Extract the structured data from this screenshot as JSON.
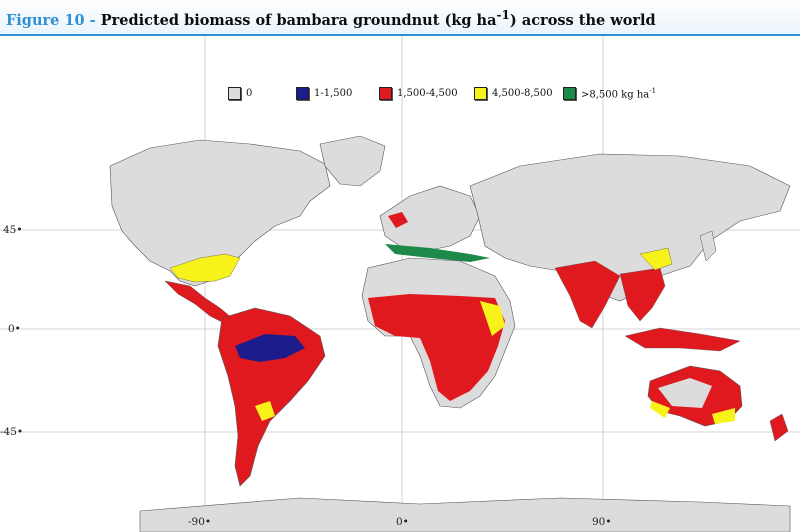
{
  "figure": {
    "number_label": "Figure 10 -",
    "title_main": "Predicted biomass of bambara groundnut (kg ha",
    "title_sup": "-1",
    "title_end": ") across the world"
  },
  "legend": [
    {
      "label": "0",
      "unit": "",
      "unit_sup": "",
      "color": "#dcdcdc"
    },
    {
      "label": "1-1,500",
      "unit": "",
      "unit_sup": "",
      "color": "#1c1c8c"
    },
    {
      "label": "1,500-4,500",
      "unit": "",
      "unit_sup": "",
      "color": "#e0191e"
    },
    {
      "label": "4,500-8,500",
      "unit": "",
      "unit_sup": "",
      "color": "#f7f21a"
    },
    {
      "label": ">8,500 kg ha",
      "unit": "",
      "unit_sup": "-1",
      "color": "#1d8a4a"
    }
  ],
  "axes": {
    "y_ticks": [
      "45•",
      "0•",
      "-45•"
    ],
    "x_ticks": [
      "-90•",
      "0•",
      "90•"
    ]
  },
  "colors": {
    "land_zero": "#dcdcdc",
    "class_1": "#1c1c8c",
    "class_2": "#e0191e",
    "class_3": "#f7f21a",
    "class_4": "#1d8a4a",
    "accent": "#2f8fd6"
  }
}
